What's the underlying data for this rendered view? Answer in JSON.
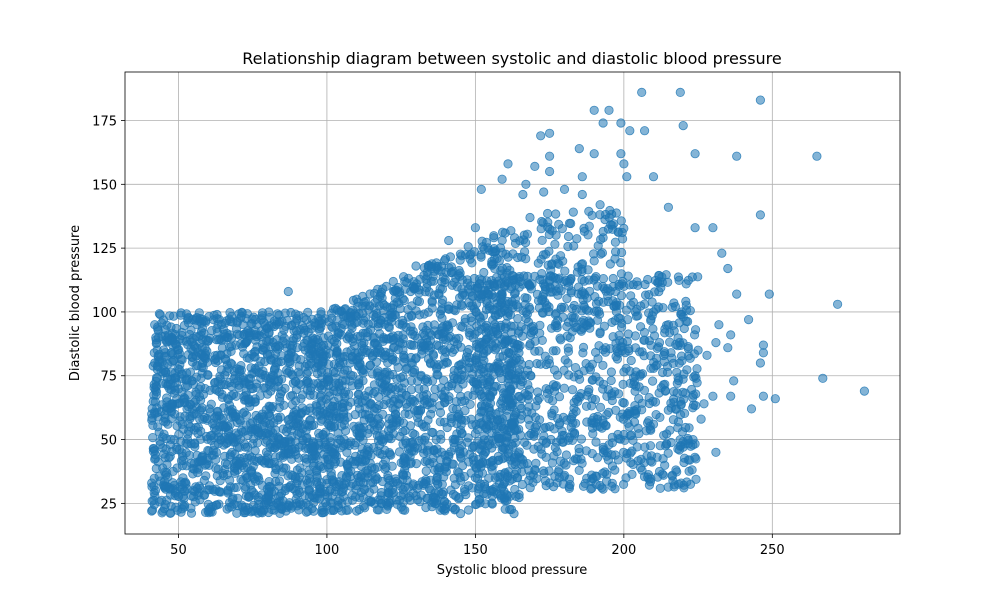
{
  "chart_data": {
    "type": "scatter",
    "title": "Relationship diagram between systolic and diastolic blood pressure",
    "xlabel": "Systolic blood pressure",
    "ylabel": "Diastolic blood pressure",
    "xlim": [
      32,
      293
    ],
    "ylim": [
      13,
      194
    ],
    "xticks": [
      50,
      100,
      150,
      200,
      250
    ],
    "yticks": [
      25,
      50,
      75,
      100,
      125,
      150,
      175
    ],
    "grid": true,
    "marker_color": "#1f77b4",
    "marker_alpha": 0.55,
    "series": [
      {
        "points": [
          [
            206,
            186
          ],
          [
            219,
            186
          ],
          [
            246,
            183
          ],
          [
            190,
            179
          ],
          [
            195,
            179
          ],
          [
            193,
            174
          ],
          [
            199,
            174
          ],
          [
            175,
            170
          ],
          [
            172,
            169
          ],
          [
            202,
            171
          ],
          [
            207,
            171
          ],
          [
            220,
            173
          ],
          [
            185,
            164
          ],
          [
            190,
            162
          ],
          [
            199,
            162
          ],
          [
            175,
            161
          ],
          [
            200,
            158
          ],
          [
            161,
            158
          ],
          [
            224,
            162
          ],
          [
            238,
            161
          ],
          [
            265,
            161
          ],
          [
            170,
            157
          ],
          [
            175,
            155
          ],
          [
            186,
            153
          ],
          [
            201,
            153
          ],
          [
            210,
            153
          ],
          [
            159,
            152
          ],
          [
            167,
            150
          ],
          [
            173,
            147
          ],
          [
            180,
            148
          ],
          [
            186,
            146
          ],
          [
            192,
            142
          ],
          [
            215,
            141
          ],
          [
            152,
            148
          ],
          [
            166,
            146
          ],
          [
            224,
            133
          ],
          [
            230,
            133
          ],
          [
            246,
            138
          ],
          [
            233,
            123
          ],
          [
            235,
            117
          ],
          [
            221,
            111
          ],
          [
            238,
            107
          ],
          [
            249,
            107
          ],
          [
            272,
            103
          ],
          [
            242,
            97
          ],
          [
            232,
            95
          ],
          [
            236,
            91
          ],
          [
            231,
            88
          ],
          [
            235,
            86
          ],
          [
            247,
            87
          ],
          [
            247,
            84
          ],
          [
            246,
            80
          ],
          [
            224,
            75
          ],
          [
            237,
            73
          ],
          [
            267,
            74
          ],
          [
            281,
            69
          ],
          [
            230,
            67
          ],
          [
            236,
            67
          ],
          [
            247,
            67
          ],
          [
            251,
            66
          ],
          [
            227,
            64
          ],
          [
            243,
            62
          ],
          [
            226,
            58
          ],
          [
            231,
            45
          ],
          [
            210,
            56
          ],
          [
            198,
            52
          ],
          [
            160,
            26
          ],
          [
            163,
            21
          ],
          [
            145,
            21
          ],
          [
            140,
            23
          ],
          [
            87,
            108
          ],
          [
            110,
            105
          ],
          [
            117,
            105
          ],
          [
            98,
            100
          ],
          [
            63,
            99
          ],
          [
            42,
            95
          ],
          [
            42,
            80
          ],
          [
            41,
            60
          ],
          [
            43,
            55
          ],
          [
            41,
            33
          ],
          [
            41,
            22
          ],
          [
            46,
            37
          ],
          [
            104,
            72
          ],
          [
            120,
            110
          ],
          [
            130,
            118
          ],
          [
            141,
            128
          ],
          [
            150,
            133
          ],
          [
            190,
            120
          ],
          [
            200,
            110
          ],
          [
            210,
            100
          ],
          [
            220,
            98
          ],
          [
            215,
            95
          ],
          [
            212,
            88
          ],
          [
            225,
            85
          ],
          [
            228,
            83
          ],
          [
            218,
            72
          ],
          [
            214,
            69
          ],
          [
            205,
            66
          ],
          [
            202,
            60
          ],
          [
            200,
            52
          ],
          [
            195,
            48
          ],
          [
            185,
            45
          ],
          [
            180,
            36
          ],
          [
            175,
            33
          ],
          [
            170,
            38
          ],
          [
            168,
            34
          ],
          [
            160,
            37
          ],
          [
            155,
            30
          ],
          [
            150,
            35
          ],
          [
            137,
            26
          ],
          [
            130,
            28
          ],
          [
            120,
            25
          ],
          [
            110,
            22
          ],
          [
            90,
            24
          ],
          [
            75,
            22
          ],
          [
            60,
            22
          ],
          [
            55,
            30
          ],
          [
            70,
            27
          ],
          [
            80,
            26
          ],
          [
            95,
            23
          ],
          [
            100,
            24
          ],
          [
            105,
            25
          ],
          [
            115,
            26
          ],
          [
            125,
            28
          ],
          [
            135,
            30
          ]
        ]
      }
    ],
    "dense_regions": [
      {
        "x": [
          41,
          100
        ],
        "y": [
          21,
          100
        ],
        "count": 1400
      },
      {
        "x": [
          100,
          165
        ],
        "y": [
          22,
          135
        ],
        "count": 1500,
        "skew": 0.55
      },
      {
        "x": [
          150,
          225
        ],
        "y": [
          30,
          115
        ],
        "count": 900
      },
      {
        "x": [
          165,
          200
        ],
        "y": [
          100,
          140
        ],
        "count": 150
      }
    ]
  }
}
